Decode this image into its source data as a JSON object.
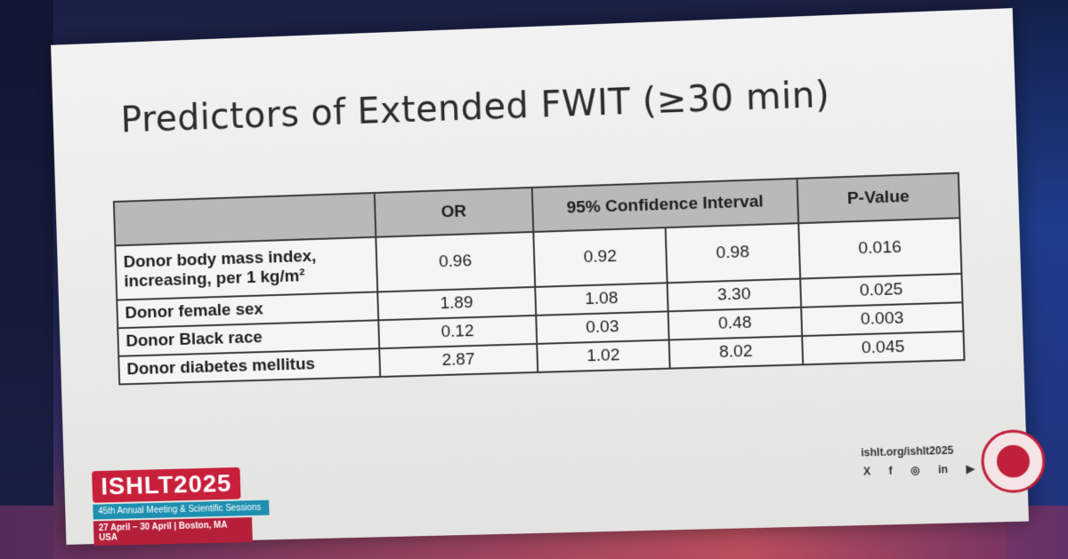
{
  "slide": {
    "title": "Predictors of Extended FWIT (≥30 min)"
  },
  "table": {
    "headers": {
      "col_or": "OR",
      "col_ci": "95% Confidence Interval",
      "col_p": "P-Value"
    },
    "rows": [
      {
        "label": "Donor body mass index, increasing, per 1 kg/m²",
        "or": "0.96",
        "ci_low": "0.92",
        "ci_high": "0.98",
        "p": "0.016"
      },
      {
        "label": "Donor female sex",
        "or": "1.89",
        "ci_low": "1.08",
        "ci_high": "3.30",
        "p": "0.025"
      },
      {
        "label": "Donor Black race",
        "or": "0.12",
        "ci_low": "0.03",
        "ci_high": "0.48",
        "p": "0.003"
      },
      {
        "label": "Donor diabetes mellitus",
        "or": "2.87",
        "ci_low": "1.02",
        "ci_high": "8.02",
        "p": "0.045"
      }
    ]
  },
  "footer": {
    "logo_word": "ISHLT2025",
    "logo_line1": "45th Annual Meeting & Scientific Sessions",
    "logo_line2": "27 April – 30 April | Boston, MA USA",
    "url": "ishlt.org/ishlt2025",
    "social": [
      "X",
      "f",
      "◎",
      "in",
      "▶"
    ]
  },
  "colors": {
    "accent_red": "#c81f3b",
    "accent_teal": "#1d8fb0",
    "header_gray": "#b9b9b9"
  }
}
